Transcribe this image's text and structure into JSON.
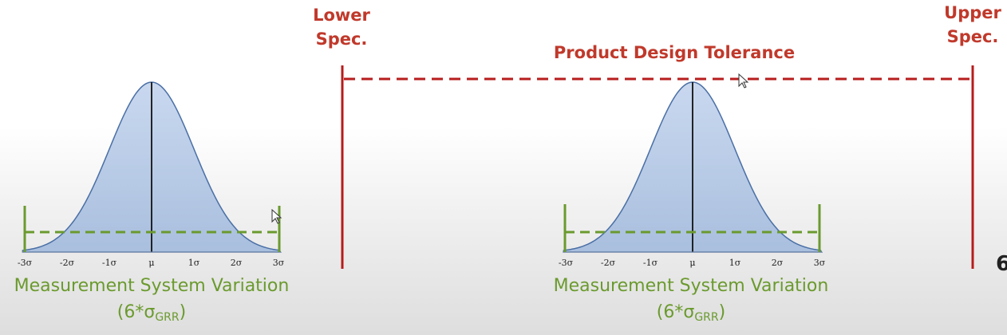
{
  "labels": {
    "lower_spec": [
      "Lower",
      "Spec."
    ],
    "upper_spec": [
      "Upper",
      "Spec."
    ],
    "tolerance": "Product Design Tolerance",
    "truncated_right": "6"
  },
  "sigma_ticks": [
    "-3σ",
    "-2σ",
    "-1σ",
    "μ",
    "1σ",
    "2σ",
    "3σ"
  ],
  "curves": [
    {
      "id": "left",
      "caption_main": "Measurement System Variation",
      "caption_prefix": "(6*σ",
      "caption_sub": "GRR",
      "caption_suffix": ")"
    },
    {
      "id": "right",
      "caption_main": "Measurement System Variation",
      "caption_prefix": "(6*σ",
      "caption_sub": "GRR",
      "caption_suffix": ")"
    }
  ],
  "colors": {
    "spec_red": "#b71c1c",
    "label_red": "#c0392b",
    "curve_fill": "#b8cbe6",
    "curve_stroke": "#4a6fa5",
    "green": "#6b9a2e"
  },
  "icons": [
    "mouse-pointer-icon"
  ]
}
